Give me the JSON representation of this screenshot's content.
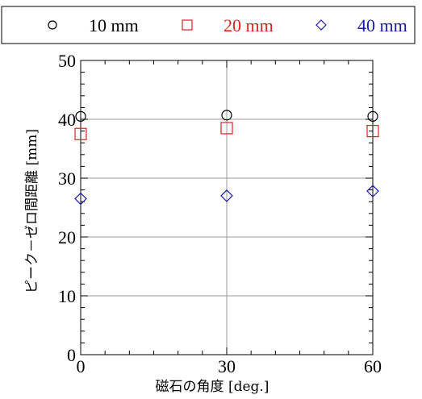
{
  "chart_data": {
    "type": "scatter",
    "x": [
      0,
      30,
      60
    ],
    "series": [
      {
        "name": "10 mm",
        "marker": "circle",
        "color": "#000000",
        "values": [
          40.5,
          40.7,
          40.5
        ]
      },
      {
        "name": "20 mm",
        "marker": "square",
        "color": "#e02020",
        "values": [
          37.5,
          38.5,
          38.0
        ]
      },
      {
        "name": "40 mm",
        "marker": "diamond",
        "color": "#1a1aaa",
        "values": [
          26.5,
          27.0,
          27.8
        ]
      }
    ],
    "xlabel": "磁石の角度 [deg.]",
    "ylabel": "ピーク－ゼロ間距離 [mm]",
    "xlim": [
      0,
      60
    ],
    "ylim": [
      0,
      50
    ],
    "xticks": [
      "0",
      "30",
      "60"
    ],
    "yticks": [
      "0",
      "10",
      "20",
      "30",
      "40",
      "50"
    ],
    "grid": true,
    "legend_position": "top"
  }
}
